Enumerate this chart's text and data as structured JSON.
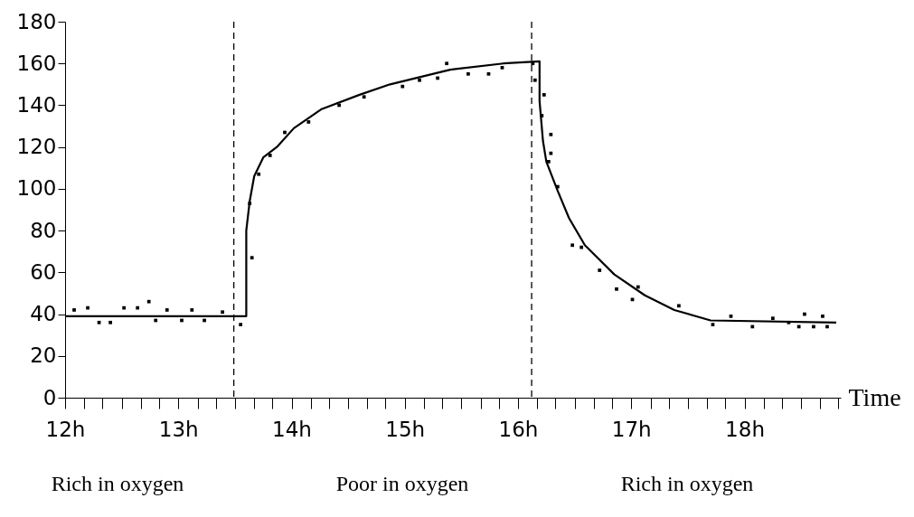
{
  "chart_data": {
    "type": "line",
    "xlabel": "Time",
    "xlim": [
      12,
      18.85
    ],
    "ylim": [
      0,
      180
    ],
    "xticks": [
      {
        "value": 12,
        "label": "12h"
      },
      {
        "value": 12.17,
        "label": null
      },
      {
        "value": 12.33,
        "label": null
      },
      {
        "value": 12.5,
        "label": null
      },
      {
        "value": 12.67,
        "label": null
      },
      {
        "value": 12.83,
        "label": null
      },
      {
        "value": 13,
        "label": "13h"
      },
      {
        "value": 13.17,
        "label": null
      },
      {
        "value": 13.33,
        "label": null
      },
      {
        "value": 13.5,
        "label": null
      },
      {
        "value": 13.67,
        "label": null
      },
      {
        "value": 13.83,
        "label": null
      },
      {
        "value": 14,
        "label": "14h"
      },
      {
        "value": 14.17,
        "label": null
      },
      {
        "value": 14.33,
        "label": null
      },
      {
        "value": 14.5,
        "label": null
      },
      {
        "value": 14.67,
        "label": null
      },
      {
        "value": 14.83,
        "label": null
      },
      {
        "value": 15,
        "label": "15h"
      },
      {
        "value": 15.17,
        "label": null
      },
      {
        "value": 15.33,
        "label": null
      },
      {
        "value": 15.5,
        "label": null
      },
      {
        "value": 15.67,
        "label": null
      },
      {
        "value": 15.83,
        "label": null
      },
      {
        "value": 16,
        "label": "16h"
      },
      {
        "value": 16.17,
        "label": null
      },
      {
        "value": 16.33,
        "label": null
      },
      {
        "value": 16.5,
        "label": null
      },
      {
        "value": 16.67,
        "label": null
      },
      {
        "value": 16.83,
        "label": null
      },
      {
        "value": 17,
        "label": "17h"
      },
      {
        "value": 17.17,
        "label": null
      },
      {
        "value": 17.33,
        "label": null
      },
      {
        "value": 17.5,
        "label": null
      },
      {
        "value": 17.67,
        "label": null
      },
      {
        "value": 17.83,
        "label": null
      },
      {
        "value": 18,
        "label": "18h"
      },
      {
        "value": 18.17,
        "label": null
      },
      {
        "value": 18.33,
        "label": null
      },
      {
        "value": 18.5,
        "label": null
      },
      {
        "value": 18.67,
        "label": null
      },
      {
        "value": 18.83,
        "label": null
      }
    ],
    "yticks": [
      0,
      20,
      40,
      60,
      80,
      100,
      120,
      140,
      160,
      180
    ],
    "grid": false,
    "series": [
      {
        "color": "#000000",
        "x": [
          12,
          13.6,
          13.6,
          13.63,
          13.67,
          13.75,
          13.87,
          14.02,
          14.26,
          14.6,
          14.87,
          15.4,
          15.87,
          16.19,
          16.19,
          16.22,
          16.25,
          16.35,
          16.45,
          16.59,
          16.85,
          17.12,
          17.38,
          17.7,
          18.81
        ],
        "values": [
          39,
          39,
          80,
          94,
          106,
          115,
          120,
          129,
          138,
          145,
          150,
          157,
          160,
          161,
          142,
          123,
          113,
          99,
          86,
          73,
          59,
          49,
          42,
          37,
          36
        ]
      },
      {
        "type": "scatter",
        "color": "#000000",
        "marker": "square",
        "x": [
          12.08,
          12.2,
          12.3,
          12.4,
          12.52,
          12.64,
          12.74,
          12.8,
          12.9,
          13.03,
          13.12,
          13.23,
          13.39,
          13.55,
          13.65,
          13.63,
          13.71,
          13.81,
          13.94,
          14.15,
          14.42,
          14.64,
          14.98,
          15.13,
          15.29,
          15.37,
          15.56,
          15.74,
          15.86,
          16.13,
          16.15,
          16.23,
          16.21,
          16.29,
          16.29,
          16.27,
          16.35,
          16.48,
          16.56,
          16.72,
          16.87,
          17.01,
          17.06,
          17.42,
          17.72,
          17.88,
          18.07,
          18.25,
          18.39,
          18.48,
          18.53,
          18.61,
          18.69,
          18.73
        ],
        "values": [
          42,
          43,
          36,
          36,
          43,
          43,
          46,
          37,
          42,
          37,
          42,
          37,
          41,
          35,
          67,
          93,
          107,
          116,
          127,
          132,
          140,
          144,
          149,
          152,
          153,
          160,
          155,
          155,
          158,
          160,
          152,
          145,
          135,
          126,
          117,
          113,
          101,
          73,
          72,
          61,
          52,
          47,
          53,
          44,
          35,
          39,
          34,
          38,
          36,
          34,
          40,
          34,
          39,
          34
        ]
      }
    ],
    "ref_lines": [
      {
        "axis": "x",
        "value": 13.49,
        "color": "#000000",
        "line_style": "dashed"
      },
      {
        "axis": "x",
        "value": 16.12,
        "color": "#000000",
        "line_style": "dashed"
      }
    ],
    "annotations": [
      "Rich in oxygen",
      "Poor in oxygen",
      "Rich in oxygen"
    ]
  }
}
